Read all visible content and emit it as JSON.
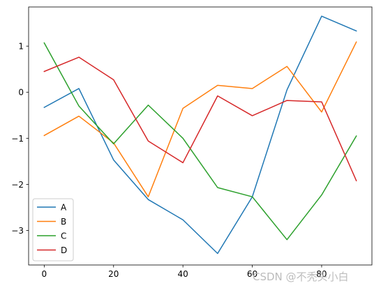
{
  "chart_data": {
    "type": "line",
    "x": [
      0,
      10,
      20,
      30,
      40,
      50,
      60,
      70,
      80,
      90
    ],
    "xticks": [
      0,
      20,
      40,
      60,
      80
    ],
    "yticks": [
      1,
      0,
      -1,
      -2,
      -3
    ],
    "xlim": [
      -4.5,
      94.5
    ],
    "ylim": [
      -3.75,
      1.85
    ],
    "grid": false,
    "legend_position": "lower-left",
    "series": [
      {
        "name": "A",
        "color": "#1f77b4",
        "values": [
          -0.33,
          0.08,
          -1.47,
          -2.33,
          -2.77,
          -3.5,
          -2.27,
          0.05,
          1.65,
          1.33
        ]
      },
      {
        "name": "B",
        "color": "#ff7f0e",
        "values": [
          -0.94,
          -0.52,
          -1.1,
          -2.27,
          -0.35,
          0.15,
          0.08,
          0.56,
          -0.43,
          1.09
        ]
      },
      {
        "name": "C",
        "color": "#2ca02c",
        "values": [
          1.07,
          -0.3,
          -1.12,
          -0.28,
          -1.0,
          -2.07,
          -2.27,
          -3.2,
          -2.23,
          -0.95
        ]
      },
      {
        "name": "D",
        "color": "#d62728",
        "values": [
          0.45,
          0.76,
          0.27,
          -1.06,
          -1.53,
          -0.08,
          -0.51,
          -0.18,
          -0.21,
          -1.92
        ]
      }
    ]
  },
  "watermark": "CSDN @不秃头小白"
}
